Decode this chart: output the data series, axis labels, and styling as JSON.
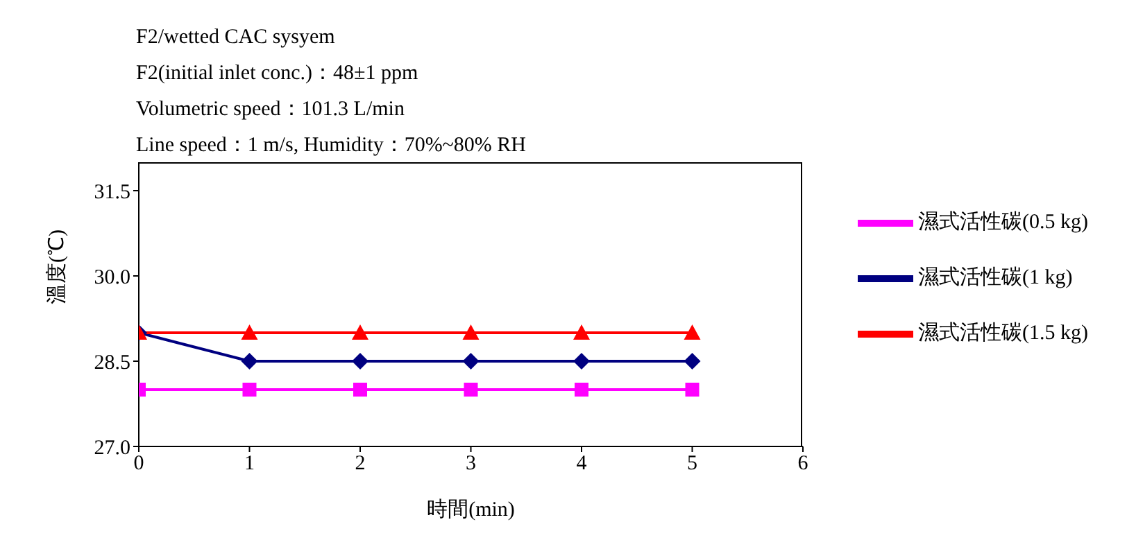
{
  "chart_data": {
    "type": "line",
    "annotations": [
      "F2/wetted CAC sysyem",
      "F2(initial inlet conc.)：48±1 ppm",
      "Volumetric speed：101.3 L/min",
      "Line speed：1 m/s, Humidity：70%~80% RH"
    ],
    "xlabel": "時間(min)",
    "ylabel": "溫度(℃)",
    "x": [
      0,
      1,
      2,
      3,
      4,
      5
    ],
    "series": [
      {
        "name": "濕式活性碳(0.5 kg)",
        "color": "#ff00ff",
        "marker": "square",
        "values": [
          28,
          28,
          28,
          28,
          28,
          28
        ]
      },
      {
        "name": "濕式活性碳(1 kg)",
        "color": "#000080",
        "marker": "diamond",
        "values": [
          29,
          28.5,
          28.5,
          28.5,
          28.5,
          28.5
        ]
      },
      {
        "name": "濕式活性碳(1.5 kg)",
        "color": "#ff0000",
        "marker": "triangle",
        "values": [
          29,
          29,
          29,
          29,
          29,
          29
        ]
      }
    ],
    "xlim": [
      0,
      6
    ],
    "xticks": [
      0,
      1,
      2,
      3,
      4,
      5,
      6
    ],
    "ylim": [
      27,
      32
    ],
    "yticks": [
      {
        "value": 27,
        "label": "27.0"
      },
      28.5,
      {
        "value": 30,
        "label": "30.0"
      },
      31.5
    ],
    "grid": false,
    "legend": "right",
    "line_style": "solid"
  }
}
